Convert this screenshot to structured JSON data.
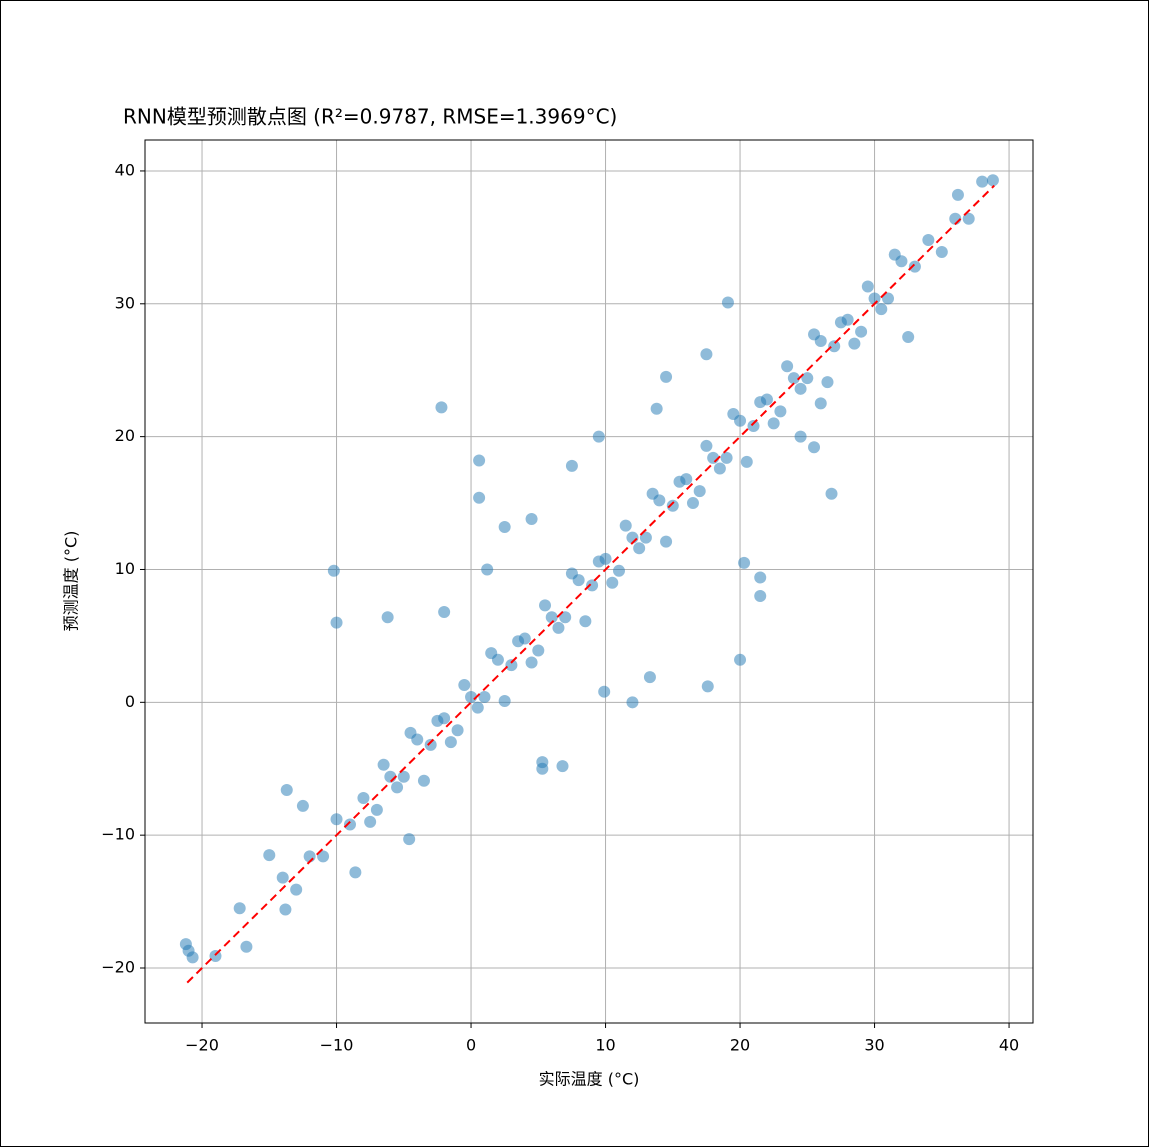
{
  "chart_data": {
    "type": "scatter",
    "title": "RNN模型预测散点图 (R²=0.9787, RMSE=1.3969°C)",
    "x_label": "实际温度 (°C)",
    "y_label": "预测温度 (°C)",
    "color": "#1f77b4",
    "x": [
      -14,
      -13,
      -12,
      -11,
      -10,
      -9,
      -8,
      -7,
      -6,
      -5,
      -4,
      -3,
      -2,
      -1,
      0,
      1,
      2,
      3,
      4,
      5,
      6,
      7,
      8,
      9,
      10,
      11,
      12,
      13,
      14,
      15,
      16,
      17,
      18,
      19,
      20,
      21,
      22,
      23,
      24,
      25,
      26,
      27,
      28,
      29,
      30,
      31,
      32,
      33,
      34,
      35,
      36,
      37,
      38,
      -7.5,
      -6.5,
      -5.5,
      -4.5,
      -3.5,
      -2.5,
      -1.5,
      -0.5,
      0.5,
      1.5,
      2.5,
      3.5,
      4.5,
      5.5,
      6.5,
      7.5,
      8.5,
      9.5,
      10.5,
      11.5,
      12.5,
      13.5,
      14.5,
      15.5,
      16.5,
      17.5,
      18.5,
      19.5,
      20.5,
      21.5,
      22.5,
      23.5,
      24.5,
      25.5,
      26.5,
      27.5,
      28.5,
      29.5,
      30.5,
      31.5,
      -2.2,
      0.6,
      0.6,
      -10.2,
      -10,
      -6.2,
      17.6,
      20,
      21.5,
      21.5,
      26.8,
      19.1,
      -21.2,
      -21,
      -20.7,
      -19,
      -16.7,
      -17.2,
      -13.8,
      -13.7,
      13.3,
      9.9,
      6.8,
      20.3,
      9.5,
      38.8,
      36.2,
      32.5,
      26,
      24.5,
      25.5,
      14.5,
      17.5,
      13.8,
      2.5,
      4.5,
      7.5,
      1.2,
      -2,
      -4.6,
      -8.6,
      5.3,
      5.3,
      12,
      -15,
      -12.5
    ],
    "values": [
      -13.2,
      -14.1,
      -11.6,
      -11.6,
      -8.8,
      -9.2,
      -7.2,
      -8.1,
      -5.6,
      -5.6,
      -2.8,
      -3.2,
      -1.2,
      -2.1,
      0.4,
      0.4,
      3.2,
      2.8,
      4.8,
      3.9,
      6.4,
      6.4,
      9.2,
      8.8,
      10.8,
      9.9,
      12.4,
      12.4,
      15.2,
      14.8,
      16.8,
      15.9,
      18.4,
      18.4,
      21.2,
      20.8,
      22.8,
      21.9,
      24.4,
      24.4,
      27.2,
      26.8,
      28.8,
      27.9,
      30.4,
      30.4,
      33.2,
      32.8,
      34.8,
      33.9,
      36.4,
      36.4,
      39.2,
      -9,
      -4.7,
      -6.4,
      -2.3,
      -5.9,
      -1.4,
      -3,
      1.3,
      -0.4,
      3.7,
      0.1,
      4.6,
      3,
      7.3,
      5.6,
      9.7,
      6.1,
      10.6,
      9,
      13.3,
      11.6,
      15.7,
      12.1,
      16.6,
      15,
      19.3,
      17.6,
      21.7,
      18.1,
      22.6,
      21,
      25.3,
      23.6,
      27.7,
      24.1,
      28.6,
      27,
      31.3,
      29.6,
      33.7,
      22.2,
      18.2,
      15.4,
      9.9,
      6,
      6.4,
      1.2,
      3.2,
      8,
      9.4,
      15.7,
      30.1,
      -18.2,
      -18.7,
      -19.2,
      -19.1,
      -18.4,
      -15.5,
      -15.6,
      -6.6,
      1.9,
      0.8,
      -4.8,
      10.5,
      20,
      39.3,
      38.2,
      27.5,
      22.5,
      20,
      19.2,
      24.5,
      26.2,
      22.1,
      13.2,
      13.8,
      17.8,
      10,
      6.8,
      -10.3,
      -12.8,
      -5,
      -4.5,
      0,
      -11.5,
      -7.8
    ],
    "reference_line": {
      "color": "#ff0000",
      "x": [
        -21.1,
        38.9
      ],
      "values": [
        -21.1,
        38.9
      ]
    },
    "xlim": [
      -24.24,
      41.78
    ],
    "ylim": [
      -24.14,
      42.33
    ],
    "xticks": [
      {
        "value": -20,
        "label": "−20"
      },
      {
        "value": -10,
        "label": "−10"
      },
      0,
      10,
      20,
      30,
      40
    ],
    "yticks": [
      {
        "value": -20,
        "label": "−20"
      },
      {
        "value": -10,
        "label": "−10"
      },
      0,
      10,
      20,
      30,
      40
    ],
    "grid": true
  }
}
